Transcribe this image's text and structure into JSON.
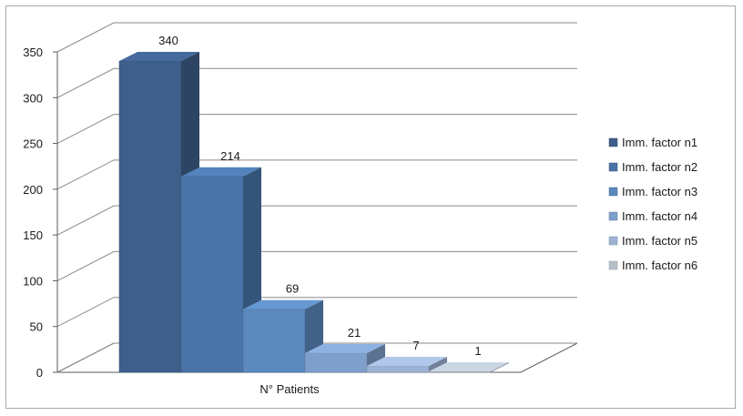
{
  "chart_data": {
    "type": "bar",
    "style": "3d-clustered",
    "categories": [
      "N° Patients"
    ],
    "series": [
      {
        "name": "Imm. factor n1",
        "values": [
          340
        ],
        "color": "#3e5f8a"
      },
      {
        "name": "Imm. factor n2",
        "values": [
          214
        ],
        "color": "#4a74a8"
      },
      {
        "name": "Imm. factor n3",
        "values": [
          69
        ],
        "color": "#5b88bd"
      },
      {
        "name": "Imm. factor n4",
        "values": [
          21
        ],
        "color": "#7f9fcb"
      },
      {
        "name": "Imm. factor n5",
        "values": [
          7
        ],
        "color": "#9eb3d3"
      },
      {
        "name": "Imm. factor n6",
        "values": [
          1
        ],
        "color": "#b5bfcc"
      }
    ],
    "title": "",
    "xlabel": "",
    "ylabel": "",
    "ylim": [
      0,
      350
    ],
    "yticks": [
      0,
      50,
      100,
      150,
      200,
      250,
      300,
      350
    ],
    "grid": true,
    "legend_position": "right"
  }
}
